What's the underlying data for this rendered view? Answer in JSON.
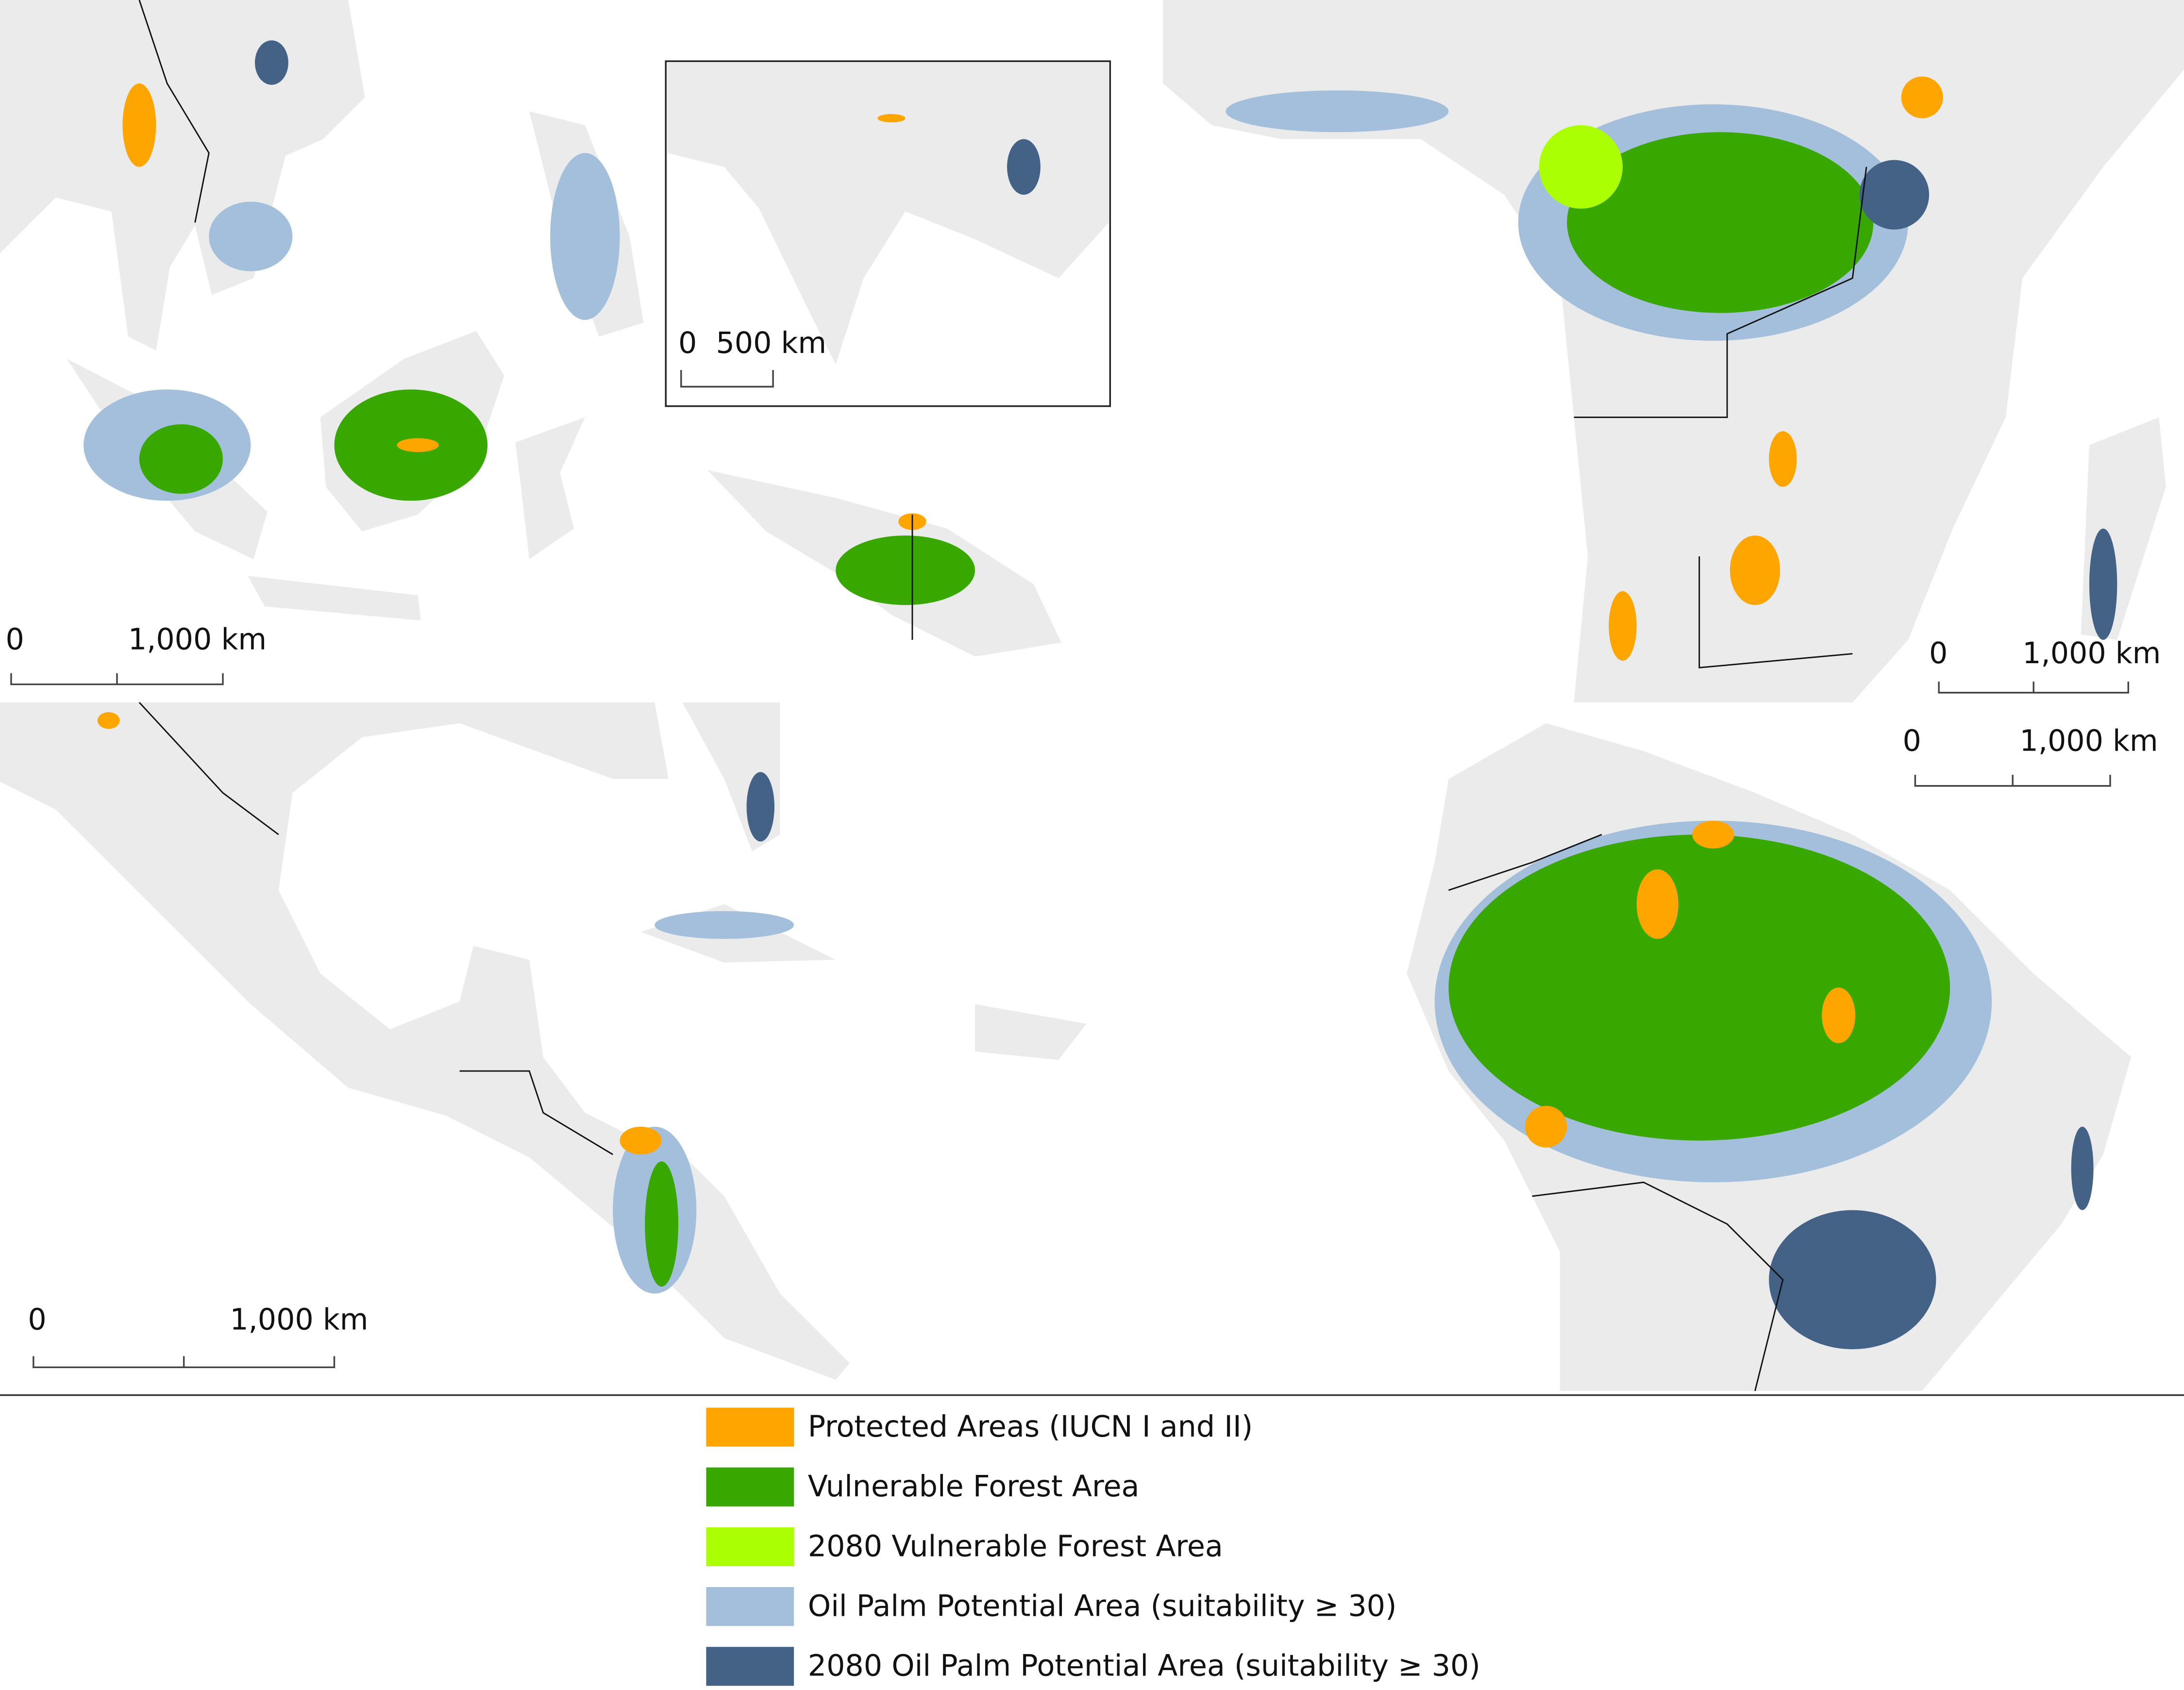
{
  "inset_scale_bar": {
    "start": "0",
    "end": "500 km"
  },
  "scale_bars": [
    {
      "start": "0",
      "end": "1,000 km"
    },
    {
      "start": "0",
      "end": "1,000 km"
    },
    {
      "start": "0",
      "end": "1,000 km"
    },
    {
      "start": "0",
      "end": "1,000 km"
    }
  ],
  "legend": [
    {
      "label": "Protected Areas (IUCN I and II)",
      "color": "#ffa500"
    },
    {
      "label": "Vulnerable Forest Area",
      "color": "#38a800"
    },
    {
      "label": "2080 Vulnerable Forest Area",
      "color": "#aaff00"
    },
    {
      "label": "Oil Palm Potential Area (suitability ≥ 30)",
      "color": "#a3bfdc"
    },
    {
      "label": "2080 Oil Palm Potential Area (suitability ≥ 30)",
      "color": "#436286"
    }
  ]
}
